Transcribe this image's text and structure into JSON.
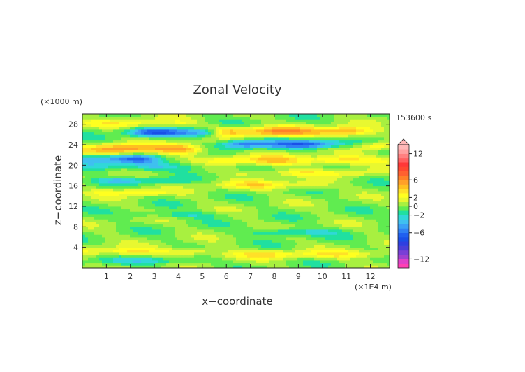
{
  "chart_data": {
    "type": "heatmap",
    "title": "Zonal Velocity",
    "xlabel": "x−coordinate",
    "ylabel": "z−coordinate",
    "x_unit": "(×1E4 m)",
    "y_unit": "(×1000 m)",
    "time_label": "153600 s",
    "xlim": [
      0,
      12.8
    ],
    "ylim": [
      0,
      30
    ],
    "x_ticks": [
      1,
      2,
      3,
      4,
      5,
      6,
      7,
      8,
      9,
      10,
      11,
      12
    ],
    "y_ticks": [
      4,
      8,
      12,
      16,
      20,
      24,
      28
    ],
    "x_tick_labels": [
      "1",
      "2",
      "3",
      "4",
      "5",
      "6",
      "7",
      "8",
      "9",
      "10",
      "11",
      "12"
    ],
    "y_tick_labels": [
      "4",
      "8",
      "12",
      "16",
      "20",
      "24",
      "28"
    ],
    "colorbar": {
      "min": -14,
      "max": 14,
      "step": 1,
      "tick_values": [
        12,
        6,
        2,
        0,
        -2,
        -6,
        -12
      ],
      "tick_labels": [
        "12",
        "6",
        "2",
        "0",
        "−2",
        "−6",
        "−12"
      ],
      "colors": [
        "#ff3fb4",
        "#e040c8",
        "#a040d0",
        "#7a3fd6",
        "#4a3fd8",
        "#2f3fe0",
        "#1a4fe8",
        "#2060f0",
        "#2f80f4",
        "#3aa0f6",
        "#3fc0f0",
        "#30d8d8",
        "#20e0a0",
        "#60ec50",
        "#a8f040",
        "#e8f830",
        "#ffff20",
        "#ffe028",
        "#ffc020",
        "#ffa028",
        "#ff8028",
        "#ff6030",
        "#ff4830",
        "#ff3838",
        "#ff6060",
        "#ff8080",
        "#ffa0a0",
        "#ffb8b8"
      ]
    },
    "field_bands": [
      {
        "z": 3.2,
        "amp": 3.2,
        "width": 0.8,
        "x_from": 0,
        "x_to": 5.4
      },
      {
        "z": 2.6,
        "amp": 3.0,
        "width": 0.8,
        "x_from": 6.0,
        "x_to": 12.8
      },
      {
        "z": 1.4,
        "amp": -2.5,
        "width": 0.7,
        "x_from": 0.8,
        "x_to": 4.8
      },
      {
        "z": 7.0,
        "amp": -3.0,
        "width": 0.7,
        "x_from": 7.0,
        "x_to": 10.5
      },
      {
        "z": 10.4,
        "amp": -2.0,
        "width": 0.6,
        "x_from": 2.0,
        "x_to": 6.0
      },
      {
        "z": 14.8,
        "amp": 3.0,
        "width": 0.7,
        "x_from": 0.5,
        "x_to": 3.5
      },
      {
        "z": 16.2,
        "amp": 3.0,
        "width": 0.8,
        "x_from": 5.5,
        "x_to": 10.0
      },
      {
        "z": 17.0,
        "amp": -2.8,
        "width": 0.6,
        "x_from": 0.5,
        "x_to": 4.0
      },
      {
        "z": 18.6,
        "amp": 2.5,
        "width": 0.7,
        "x_from": 6.5,
        "x_to": 12.0
      },
      {
        "z": 19.8,
        "amp": -3.0,
        "width": 0.8,
        "x_from": 0,
        "x_to": 5.0
      },
      {
        "z": 21.2,
        "amp": -6.0,
        "width": 0.8,
        "x_from": 0,
        "x_to": 3.0
      },
      {
        "z": 21.0,
        "amp": 4.0,
        "width": 0.9,
        "x_from": 5.5,
        "x_to": 12.8
      },
      {
        "z": 23.2,
        "amp": 6.0,
        "width": 1.0,
        "x_from": 0,
        "x_to": 5.0
      },
      {
        "z": 24.2,
        "amp": -6.5,
        "width": 0.8,
        "x_from": 6.0,
        "x_to": 11.0
      },
      {
        "z": 23.8,
        "amp": 4.0,
        "width": 0.7,
        "x_from": 11.8,
        "x_to": 12.8
      },
      {
        "z": 26.4,
        "amp": -7.0,
        "width": 0.8,
        "x_from": 2.0,
        "x_to": 5.5
      },
      {
        "z": 26.6,
        "amp": 6.0,
        "width": 0.9,
        "x_from": 5.5,
        "x_to": 12.0
      },
      {
        "z": 28.2,
        "amp": 2.5,
        "width": 0.8,
        "x_from": 0,
        "x_to": 4.5
      }
    ]
  }
}
